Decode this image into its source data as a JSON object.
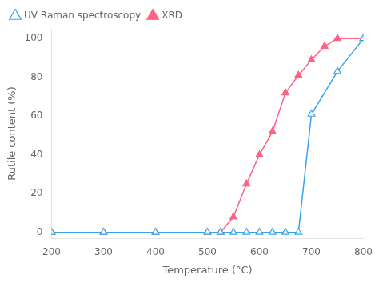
{
  "chart_data": {
    "type": "line",
    "xlabel": "Temperature (°C)",
    "ylabel": "Rutile content (%)",
    "series": [
      {
        "name": "UV Raman spectroscopy",
        "marker": "triangle_open",
        "x": [
          200,
          300,
          400,
          500,
          525,
          550,
          575,
          600,
          625,
          650,
          675,
          700,
          750,
          800
        ],
        "values": [
          0,
          0,
          0,
          0,
          0,
          0,
          0,
          0,
          0,
          0,
          0,
          61,
          83,
          100
        ]
      },
      {
        "name": "XRD",
        "marker": "triangle",
        "x": [
          200,
          300,
          400,
          500,
          525,
          550,
          575,
          600,
          625,
          650,
          675,
          700,
          725,
          750,
          800
        ],
        "values": [
          0,
          0,
          0,
          0,
          0,
          8,
          25,
          40,
          52,
          72,
          81,
          89,
          96,
          100,
          100
        ]
      }
    ],
    "xlim": [
      200,
      800
    ],
    "ylim": [
      -3,
      105
    ],
    "xticks": [
      200,
      300,
      400,
      500,
      600,
      700,
      800
    ],
    "yticks": [
      0,
      20,
      40,
      60,
      80,
      100
    ],
    "grid": false,
    "legend": "upper left"
  }
}
